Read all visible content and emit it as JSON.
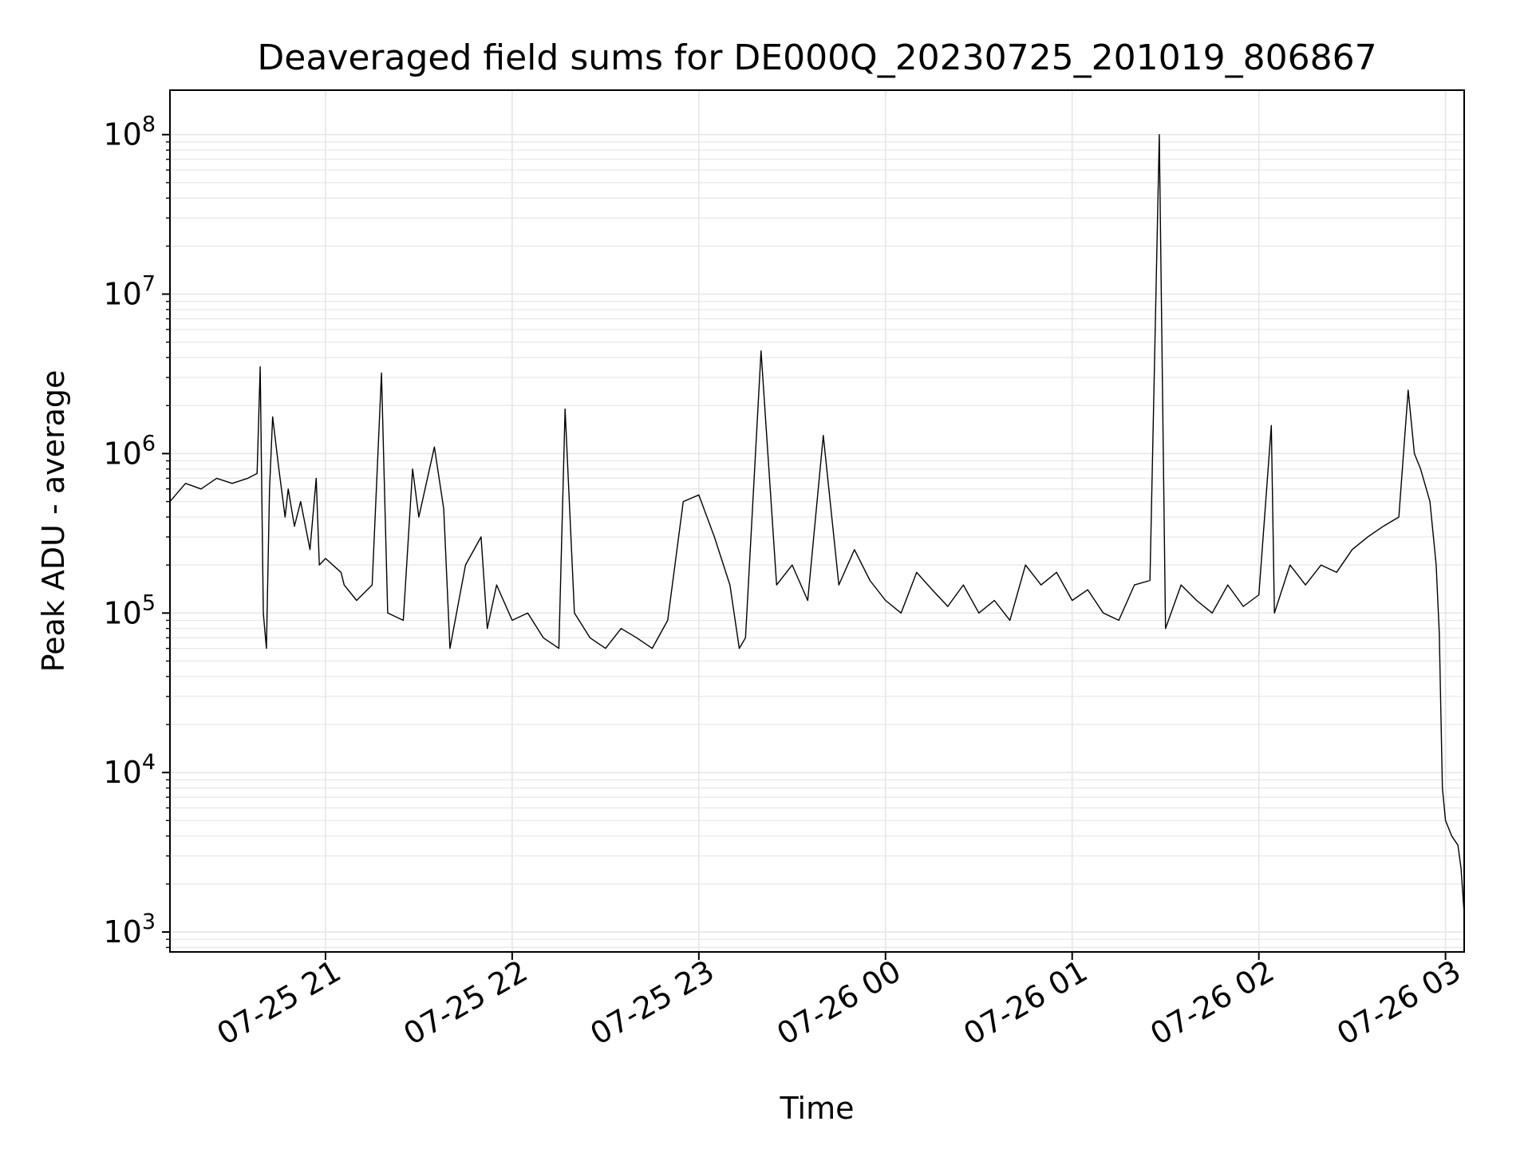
{
  "chart_data": {
    "type": "line",
    "title": "Deaveraged field sums for DE000Q_20230725_201019_806867",
    "xlabel": "Time",
    "ylabel": "Peak ADU - average",
    "y_scale": "log",
    "ylim": [
      750,
      190000000
    ],
    "xlim": [
      "2023-07-25 20:10",
      "2023-07-26 03:06"
    ],
    "x_ticks": [
      {
        "time": "2023-07-25 21:00",
        "label": "07-25 21"
      },
      {
        "time": "2023-07-25 22:00",
        "label": "07-25 22"
      },
      {
        "time": "2023-07-25 23:00",
        "label": "07-25 23"
      },
      {
        "time": "2023-07-26 00:00",
        "label": "07-26 00"
      },
      {
        "time": "2023-07-26 01:00",
        "label": "07-26 01"
      },
      {
        "time": "2023-07-26 02:00",
        "label": "07-26 02"
      },
      {
        "time": "2023-07-26 03:00",
        "label": "07-26 03"
      }
    ],
    "y_ticks": [
      {
        "value": 1000,
        "base": "10",
        "exp": "3"
      },
      {
        "value": 10000,
        "base": "10",
        "exp": "4"
      },
      {
        "value": 100000,
        "base": "10",
        "exp": "5"
      },
      {
        "value": 1000000,
        "base": "10",
        "exp": "6"
      },
      {
        "value": 10000000,
        "base": "10",
        "exp": "7"
      },
      {
        "value": 100000000,
        "base": "10",
        "exp": "8"
      }
    ],
    "grid": true,
    "grid_minor_y": true,
    "line_color": "#000000",
    "grid_color": "#e6e6e6",
    "series": [
      {
        "x": [
          "2023-07-25 20:10",
          "2023-07-25 20:15",
          "2023-07-25 20:20",
          "2023-07-25 20:25",
          "2023-07-25 20:30",
          "2023-07-25 20:35",
          "2023-07-25 20:38",
          "2023-07-25 20:39",
          "2023-07-25 20:40",
          "2023-07-25 20:41",
          "2023-07-25 20:42",
          "2023-07-25 20:43",
          "2023-07-25 20:45",
          "2023-07-25 20:47",
          "2023-07-25 20:48",
          "2023-07-25 20:50",
          "2023-07-25 20:52",
          "2023-07-25 20:55",
          "2023-07-25 20:57",
          "2023-07-25 20:58",
          "2023-07-25 21:00",
          "2023-07-25 21:05",
          "2023-07-25 21:06",
          "2023-07-25 21:10",
          "2023-07-25 21:15",
          "2023-07-25 21:18",
          "2023-07-25 21:20",
          "2023-07-25 21:25",
          "2023-07-25 21:28",
          "2023-07-25 21:30",
          "2023-07-25 21:35",
          "2023-07-25 21:38",
          "2023-07-25 21:40",
          "2023-07-25 21:45",
          "2023-07-25 21:50",
          "2023-07-25 21:52",
          "2023-07-25 21:55",
          "2023-07-25 22:00",
          "2023-07-25 22:05",
          "2023-07-25 22:10",
          "2023-07-25 22:15",
          "2023-07-25 22:17",
          "2023-07-25 22:20",
          "2023-07-25 22:25",
          "2023-07-25 22:30",
          "2023-07-25 22:35",
          "2023-07-25 22:40",
          "2023-07-25 22:45",
          "2023-07-25 22:50",
          "2023-07-25 22:55",
          "2023-07-25 23:00",
          "2023-07-25 23:05",
          "2023-07-25 23:10",
          "2023-07-25 23:13",
          "2023-07-25 23:15",
          "2023-07-25 23:20",
          "2023-07-25 23:25",
          "2023-07-25 23:30",
          "2023-07-25 23:35",
          "2023-07-25 23:40",
          "2023-07-25 23:45",
          "2023-07-25 23:50",
          "2023-07-25 23:55",
          "2023-07-26 00:00",
          "2023-07-26 00:05",
          "2023-07-26 00:10",
          "2023-07-26 00:15",
          "2023-07-26 00:20",
          "2023-07-26 00:25",
          "2023-07-26 00:30",
          "2023-07-26 00:35",
          "2023-07-26 00:40",
          "2023-07-26 00:45",
          "2023-07-26 00:50",
          "2023-07-26 00:55",
          "2023-07-26 01:00",
          "2023-07-26 01:05",
          "2023-07-26 01:10",
          "2023-07-26 01:15",
          "2023-07-26 01:20",
          "2023-07-26 01:25",
          "2023-07-26 01:28",
          "2023-07-26 01:30",
          "2023-07-26 01:35",
          "2023-07-26 01:40",
          "2023-07-26 01:45",
          "2023-07-26 01:50",
          "2023-07-26 01:55",
          "2023-07-26 02:00",
          "2023-07-26 02:04",
          "2023-07-26 02:05",
          "2023-07-26 02:10",
          "2023-07-26 02:15",
          "2023-07-26 02:20",
          "2023-07-26 02:25",
          "2023-07-26 02:30",
          "2023-07-26 02:35",
          "2023-07-26 02:40",
          "2023-07-26 02:45",
          "2023-07-26 02:48",
          "2023-07-26 02:50",
          "2023-07-26 02:52",
          "2023-07-26 02:55",
          "2023-07-26 02:57",
          "2023-07-26 02:58",
          "2023-07-26 02:59",
          "2023-07-26 03:00",
          "2023-07-26 03:02",
          "2023-07-26 03:04",
          "2023-07-26 03:05",
          "2023-07-26 03:06"
        ],
        "y": [
          500000,
          650000,
          600000,
          700000,
          650000,
          700000,
          750000,
          3500000,
          100000,
          60000,
          600000,
          1700000,
          800000,
          400000,
          600000,
          350000,
          500000,
          250000,
          700000,
          200000,
          220000,
          180000,
          150000,
          120000,
          150000,
          3200000,
          100000,
          90000,
          800000,
          400000,
          1100000,
          450000,
          60000,
          200000,
          300000,
          80000,
          150000,
          90000,
          100000,
          70000,
          60000,
          1900000,
          100000,
          70000,
          60000,
          80000,
          70000,
          60000,
          90000,
          500000,
          550000,
          300000,
          150000,
          60000,
          70000,
          4400000,
          150000,
          200000,
          120000,
          1300000,
          150000,
          250000,
          160000,
          120000,
          100000,
          180000,
          140000,
          110000,
          150000,
          100000,
          120000,
          90000,
          200000,
          150000,
          180000,
          120000,
          140000,
          100000,
          90000,
          150000,
          160000,
          100000000,
          80000,
          150000,
          120000,
          100000,
          150000,
          110000,
          130000,
          1500000,
          100000,
          200000,
          150000,
          200000,
          180000,
          250000,
          300000,
          350000,
          400000,
          2500000,
          1000000,
          800000,
          500000,
          200000,
          75000,
          8000,
          5000,
          4000,
          3500,
          2500,
          1300
        ]
      }
    ]
  }
}
